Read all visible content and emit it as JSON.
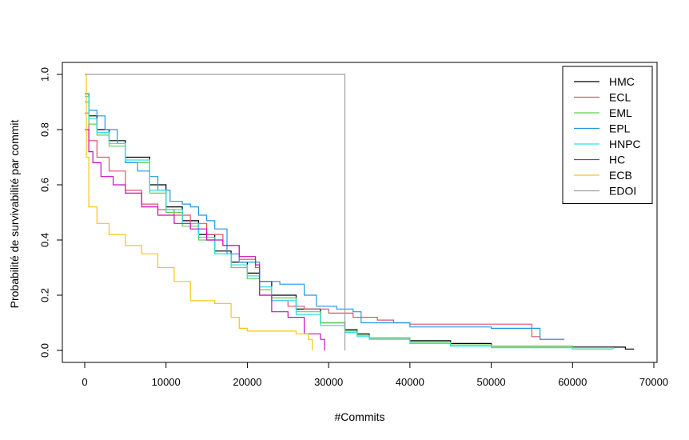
{
  "chart_data": {
    "type": "line",
    "step": true,
    "xlabel": "#Commits",
    "ylabel": "Probabilité de survivabilité par commit",
    "xlim": [
      0,
      70000
    ],
    "ylim": [
      0,
      1.0
    ],
    "xticks": [
      0,
      10000,
      20000,
      30000,
      40000,
      50000,
      60000,
      70000
    ],
    "yticks": [
      0.0,
      0.2,
      0.4,
      0.6,
      0.8,
      1.0
    ],
    "xtick_labels": [
      "0",
      "10000",
      "20000",
      "30000",
      "40000",
      "50000",
      "60000",
      "70000"
    ],
    "ytick_labels": [
      "0.0",
      "0.2",
      "0.4",
      "0.6",
      "0.8",
      "1.0"
    ],
    "grid": false,
    "legend_position": "top-right",
    "series": [
      {
        "name": "HMC",
        "color": "#000000",
        "points": [
          [
            0,
            0.93
          ],
          [
            500,
            0.85
          ],
          [
            1500,
            0.8
          ],
          [
            3000,
            0.76
          ],
          [
            5000,
            0.7
          ],
          [
            8000,
            0.6
          ],
          [
            10000,
            0.52
          ],
          [
            12000,
            0.47
          ],
          [
            14000,
            0.42
          ],
          [
            16000,
            0.36
          ],
          [
            18000,
            0.32
          ],
          [
            20000,
            0.28
          ],
          [
            21500,
            0.25
          ],
          [
            23000,
            0.2
          ],
          [
            26000,
            0.15
          ],
          [
            29000,
            0.1
          ],
          [
            32000,
            0.075
          ],
          [
            33500,
            0.06
          ],
          [
            35000,
            0.045
          ],
          [
            40000,
            0.035
          ],
          [
            45000,
            0.025
          ],
          [
            50000,
            0.015
          ],
          [
            60000,
            0.012
          ],
          [
            66000,
            0.012
          ],
          [
            66500,
            0.005
          ],
          [
            67500,
            0.003
          ]
        ]
      },
      {
        "name": "ECL",
        "color": "#DF536B",
        "points": [
          [
            0,
            0.86
          ],
          [
            500,
            0.76
          ],
          [
            1500,
            0.7
          ],
          [
            3000,
            0.65
          ],
          [
            5000,
            0.58
          ],
          [
            7000,
            0.53
          ],
          [
            9000,
            0.51
          ],
          [
            11000,
            0.49
          ],
          [
            13000,
            0.46
          ],
          [
            15000,
            0.42
          ],
          [
            17000,
            0.38
          ],
          [
            19000,
            0.33
          ],
          [
            21000,
            0.3
          ],
          [
            21500,
            0.2
          ],
          [
            23000,
            0.18
          ],
          [
            25000,
            0.16
          ],
          [
            27000,
            0.15
          ],
          [
            30000,
            0.135
          ],
          [
            33000,
            0.12
          ],
          [
            36000,
            0.11
          ],
          [
            38000,
            0.1
          ],
          [
            40000,
            0.095
          ],
          [
            55000,
            0.05
          ],
          [
            56000,
            0.04
          ],
          [
            59000,
            0.04
          ]
        ]
      },
      {
        "name": "EML",
        "color": "#61D04F",
        "points": [
          [
            0,
            0.9
          ],
          [
            500,
            0.82
          ],
          [
            1500,
            0.78
          ],
          [
            3000,
            0.74
          ],
          [
            5000,
            0.68
          ],
          [
            8000,
            0.57
          ],
          [
            10000,
            0.5
          ],
          [
            12000,
            0.45
          ],
          [
            14000,
            0.4
          ],
          [
            16000,
            0.35
          ],
          [
            18000,
            0.3
          ],
          [
            20000,
            0.26
          ],
          [
            21500,
            0.22
          ],
          [
            23000,
            0.19
          ],
          [
            26000,
            0.14
          ],
          [
            29000,
            0.1
          ],
          [
            32000,
            0.07
          ],
          [
            33500,
            0.055
          ],
          [
            35000,
            0.045
          ],
          [
            40000,
            0.03
          ],
          [
            45000,
            0.02
          ],
          [
            50000,
            0.015
          ],
          [
            60000,
            0.01
          ],
          [
            65000,
            0.005
          ]
        ]
      },
      {
        "name": "EPL",
        "color": "#2297E6",
        "points": [
          [
            0,
            0.93
          ],
          [
            500,
            0.87
          ],
          [
            1500,
            0.85
          ],
          [
            2500,
            0.8
          ],
          [
            4000,
            0.75
          ],
          [
            5000,
            0.68
          ],
          [
            6500,
            0.65
          ],
          [
            8000,
            0.63
          ],
          [
            9000,
            0.58
          ],
          [
            10500,
            0.54
          ],
          [
            12000,
            0.53
          ],
          [
            13000,
            0.52
          ],
          [
            14000,
            0.49
          ],
          [
            15000,
            0.47
          ],
          [
            16000,
            0.44
          ],
          [
            17500,
            0.35
          ],
          [
            19000,
            0.32
          ],
          [
            21500,
            0.25
          ],
          [
            24000,
            0.24
          ],
          [
            27000,
            0.2
          ],
          [
            28500,
            0.16
          ],
          [
            31000,
            0.15
          ],
          [
            33000,
            0.14
          ],
          [
            34000,
            0.1
          ],
          [
            40000,
            0.085
          ],
          [
            50000,
            0.08
          ],
          [
            55500,
            0.08
          ],
          [
            56000,
            0.04
          ],
          [
            59000,
            0.04
          ]
        ]
      },
      {
        "name": "HNPC",
        "color": "#28E2E5",
        "points": [
          [
            0,
            0.92
          ],
          [
            500,
            0.84
          ],
          [
            1500,
            0.79
          ],
          [
            3000,
            0.75
          ],
          [
            5000,
            0.69
          ],
          [
            8000,
            0.58
          ],
          [
            10000,
            0.51
          ],
          [
            12000,
            0.46
          ],
          [
            14000,
            0.41
          ],
          [
            16000,
            0.35
          ],
          [
            18000,
            0.31
          ],
          [
            20000,
            0.27
          ],
          [
            21500,
            0.23
          ],
          [
            23000,
            0.18
          ],
          [
            26000,
            0.13
          ],
          [
            29000,
            0.09
          ],
          [
            32000,
            0.065
          ],
          [
            33500,
            0.05
          ],
          [
            35000,
            0.04
          ],
          [
            40000,
            0.025
          ],
          [
            45000,
            0.015
          ],
          [
            50000,
            0.01
          ],
          [
            60000,
            0.005
          ],
          [
            65000,
            0.005
          ]
        ]
      },
      {
        "name": "HC",
        "color": "#CD0BBC",
        "points": [
          [
            0,
            0.8
          ],
          [
            500,
            0.72
          ],
          [
            1000,
            0.68
          ],
          [
            2000,
            0.63
          ],
          [
            3500,
            0.6
          ],
          [
            5000,
            0.57
          ],
          [
            7000,
            0.52
          ],
          [
            9000,
            0.49
          ],
          [
            11000,
            0.46
          ],
          [
            13000,
            0.44
          ],
          [
            15000,
            0.4
          ],
          [
            17000,
            0.38
          ],
          [
            19000,
            0.34
          ],
          [
            21000,
            0.31
          ],
          [
            21500,
            0.2
          ],
          [
            23000,
            0.14
          ],
          [
            25000,
            0.12
          ],
          [
            27000,
            0.06
          ],
          [
            29000,
            0.04
          ],
          [
            29500,
            0.0
          ]
        ]
      },
      {
        "name": "ECB",
        "color": "#F5C710",
        "points": [
          [
            0,
            1.0
          ],
          [
            200,
            0.7
          ],
          [
            500,
            0.52
          ],
          [
            1500,
            0.46
          ],
          [
            3000,
            0.42
          ],
          [
            5000,
            0.38
          ],
          [
            7000,
            0.35
          ],
          [
            9000,
            0.3
          ],
          [
            11000,
            0.25
          ],
          [
            13000,
            0.18
          ],
          [
            16000,
            0.17
          ],
          [
            18000,
            0.12
          ],
          [
            19000,
            0.08
          ],
          [
            20000,
            0.07
          ],
          [
            22000,
            0.07
          ],
          [
            24000,
            0.07
          ],
          [
            26000,
            0.06
          ],
          [
            27500,
            0.04
          ],
          [
            28000,
            0.0
          ]
        ]
      },
      {
        "name": "EDOI",
        "color": "#9E9E9E",
        "points": [
          [
            0,
            1.0
          ],
          [
            32000,
            1.0
          ],
          [
            32000,
            0.0
          ]
        ]
      }
    ]
  }
}
